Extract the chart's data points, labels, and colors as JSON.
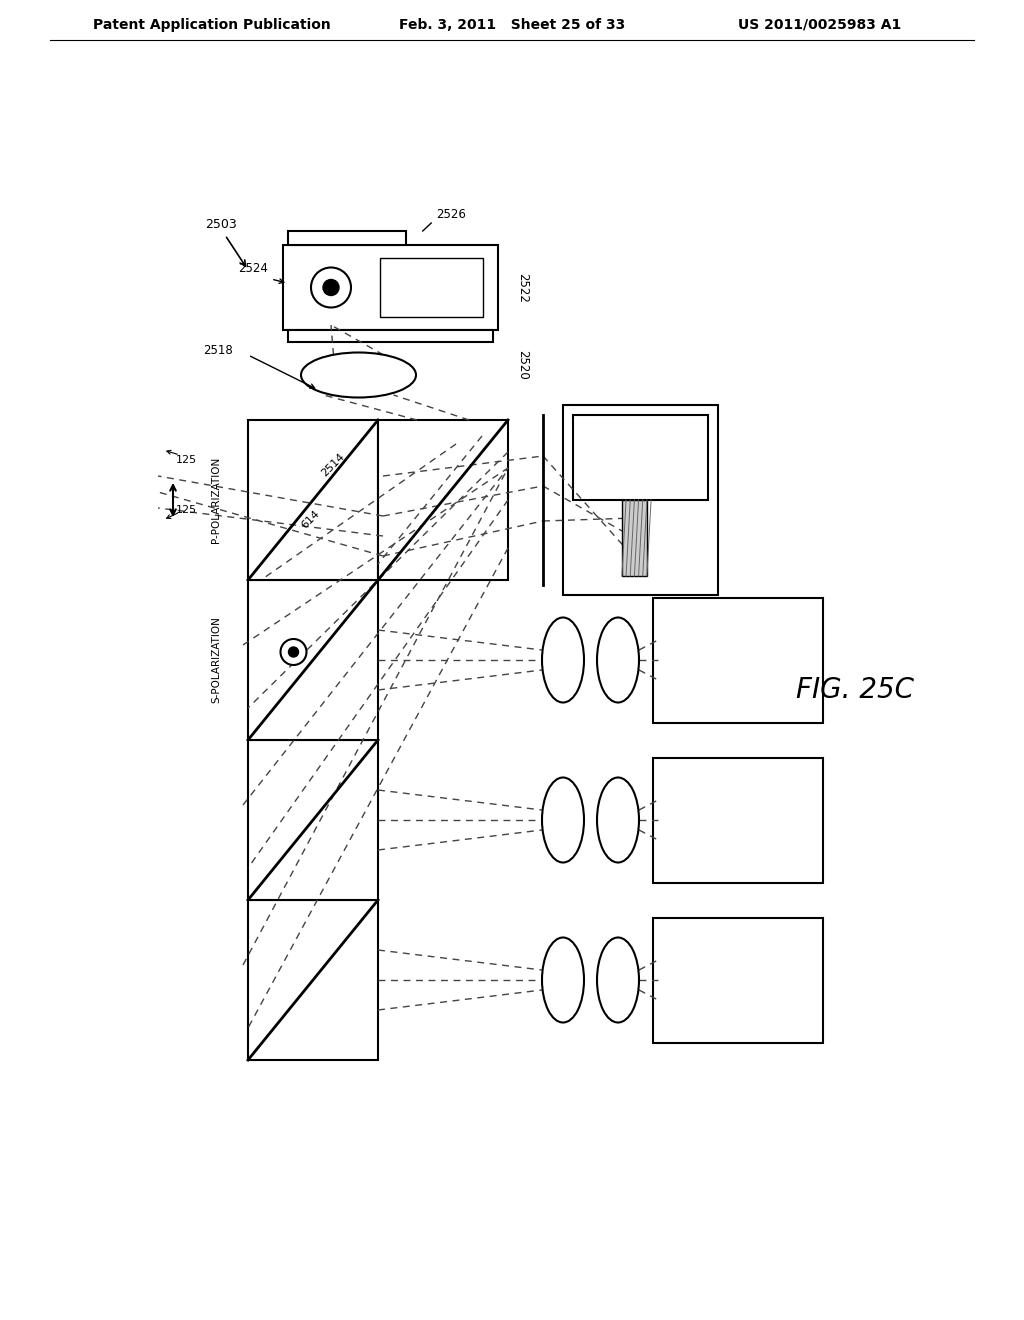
{
  "title": "FIG. 25C",
  "header_left": "Patent Application Publication",
  "header_mid": "Feb. 3, 2011   Sheet 25 of 33",
  "header_right": "US 2011/0025983 A1",
  "bg_color": "#ffffff",
  "label_2503": "2503",
  "label_2518": "2518",
  "label_2524": "2524",
  "label_2526": "2526",
  "label_2522": "2522",
  "label_2520": "2520",
  "label_2514": "2514",
  "label_614": "614",
  "label_125a": "125",
  "label_125b": "125",
  "label_ppol": "P-POLARIZATION",
  "label_spol": "S-POLARIZATION"
}
